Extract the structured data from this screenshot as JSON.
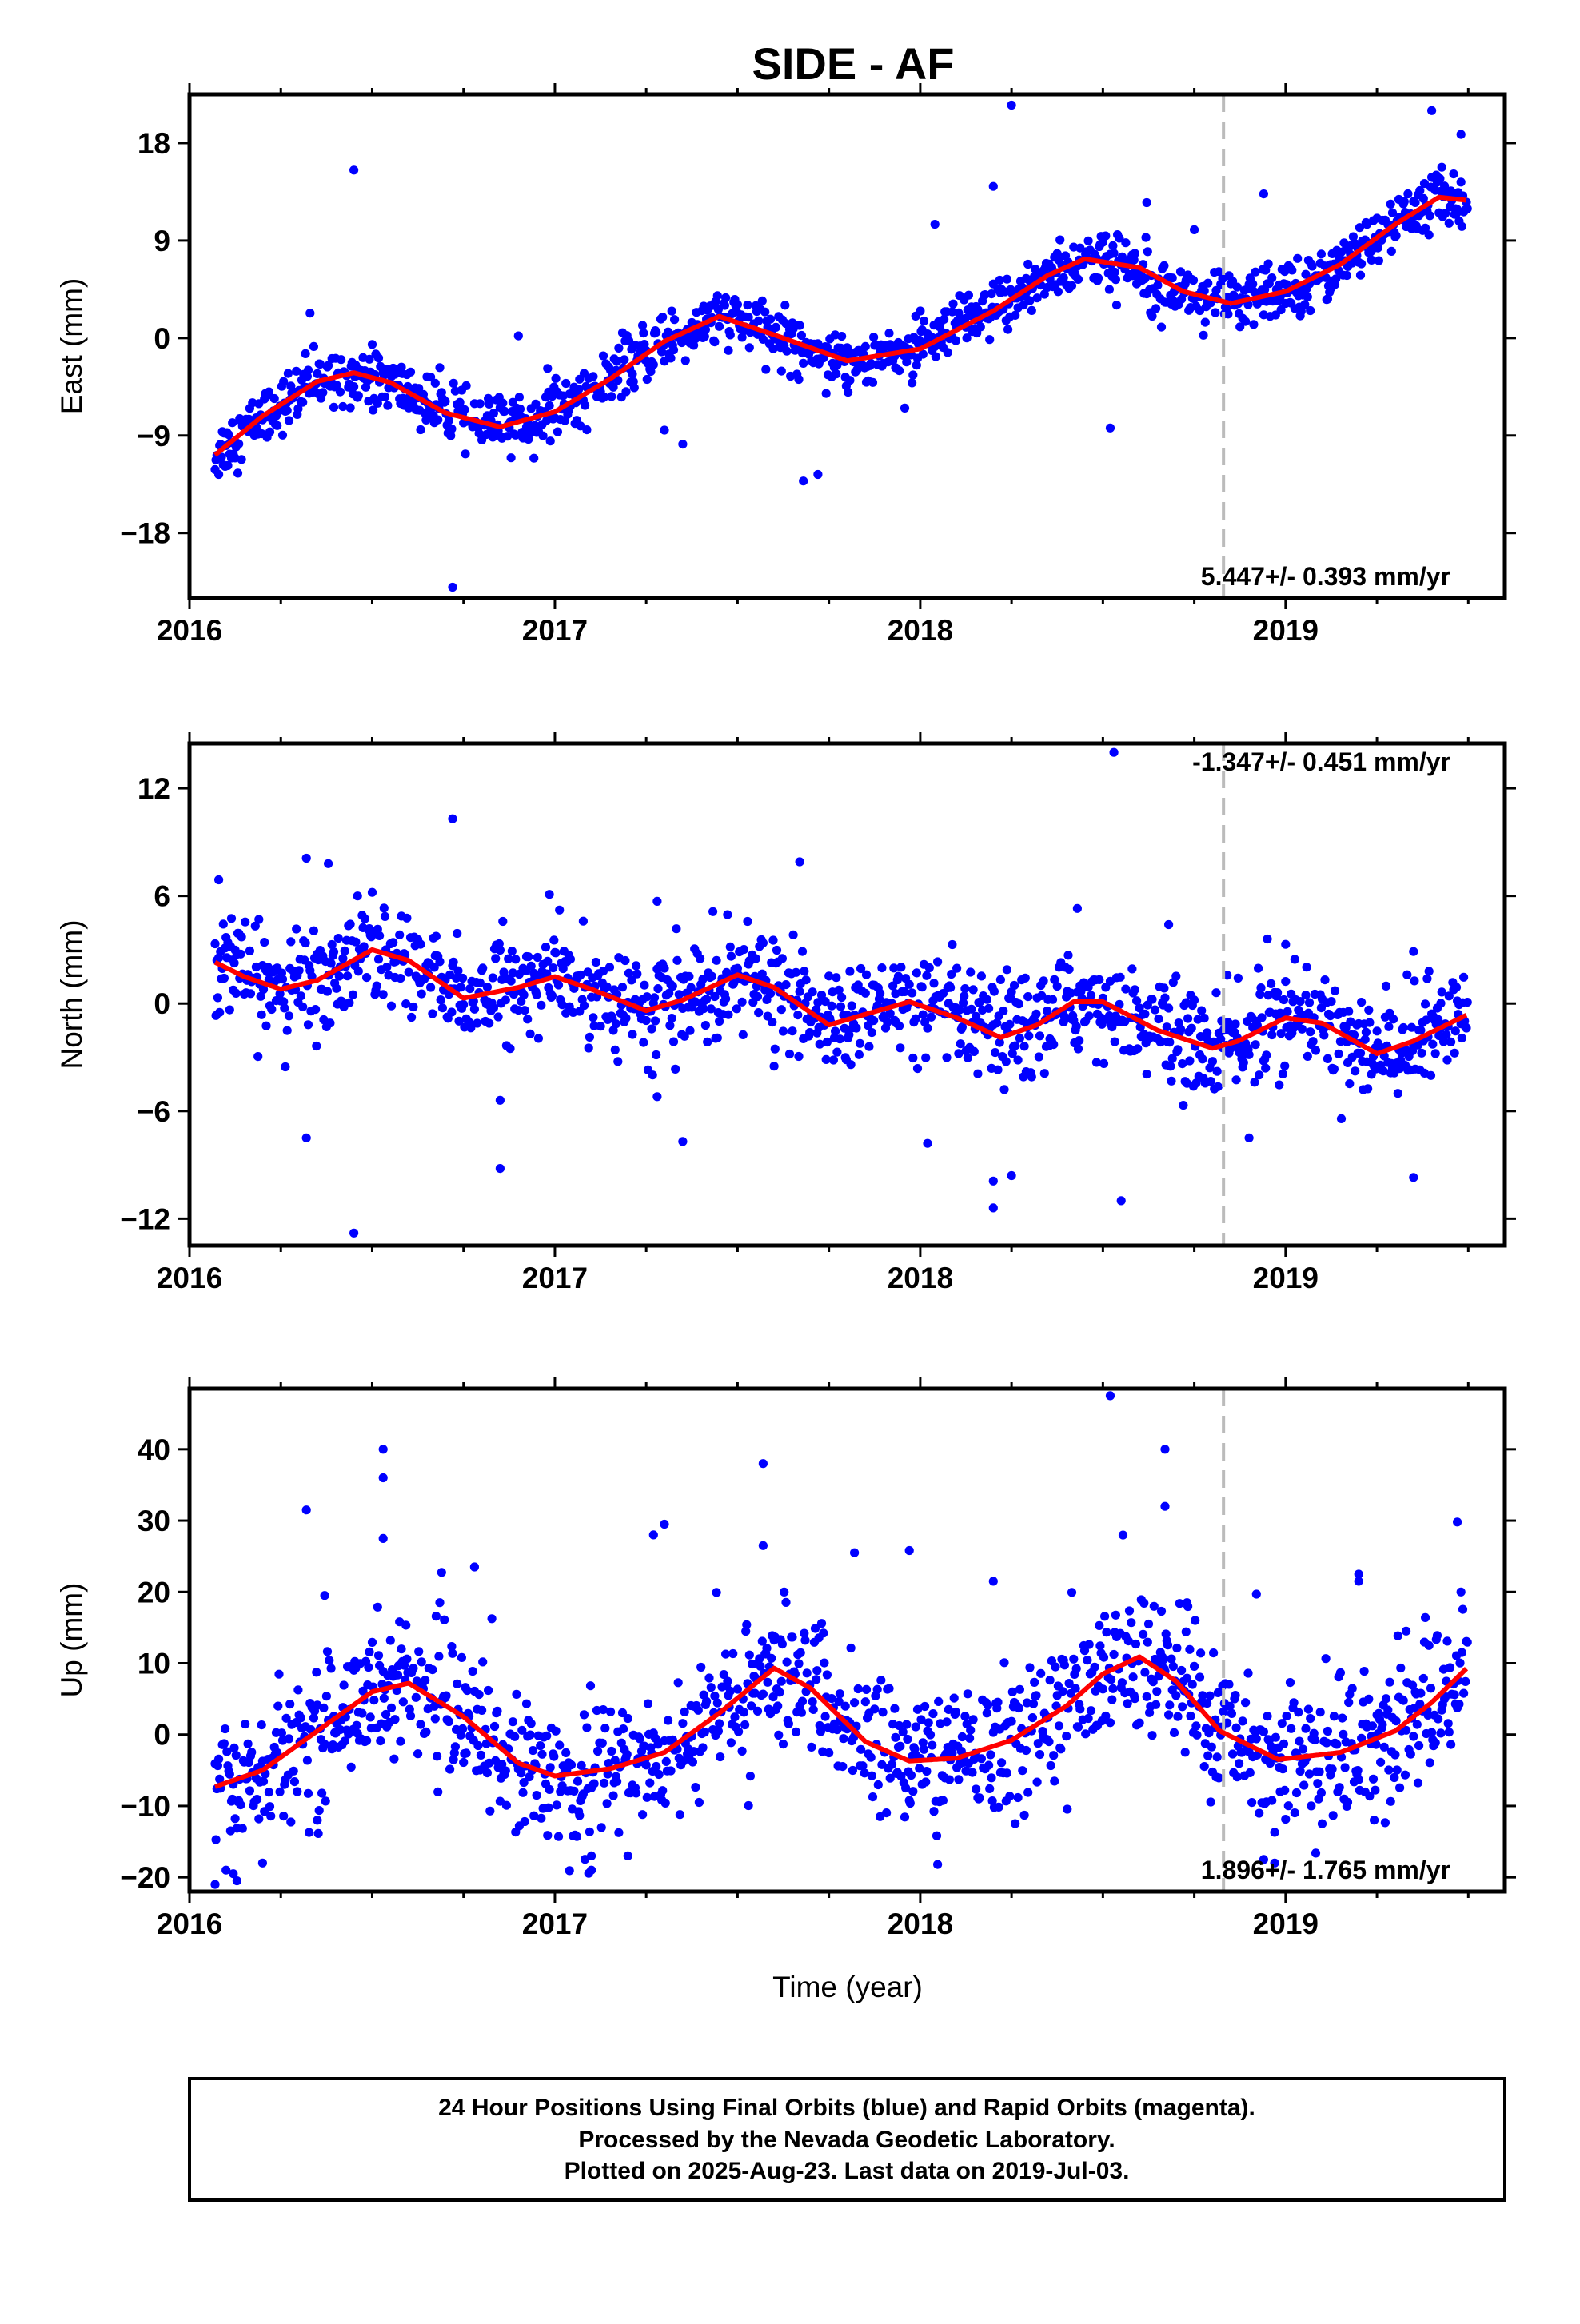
{
  "title": "SIDE - AF",
  "xlabel": "Time (year)",
  "footer": {
    "line1": "24 Hour Positions Using Final Orbits (blue) and Rapid Orbits (magenta).",
    "line2": "Processed by the Nevada Geodetic Laboratory.",
    "line3": "Plotted on 2025-Aug-23. Last data on 2019-Jul-03."
  },
  "colors": {
    "points": "#0000ff",
    "fit": "#ff0000",
    "marker_line": "#bbbbbb",
    "frame": "#000000"
  },
  "chart_data": [
    {
      "type": "scatter",
      "component": "East",
      "ylabel": "East (mm)",
      "rate": "5.447+/- 0.393 mm/yr",
      "xlim": [
        2016.0,
        2019.6
      ],
      "ylim": [
        -24,
        22.5
      ],
      "xticks": [
        2016,
        2017,
        2018,
        2019
      ],
      "yticks": [
        -18,
        -9,
        0,
        9,
        18
      ],
      "marker_x": 2018.83,
      "fit": [
        [
          2016.07,
          -10.8
        ],
        [
          2016.2,
          -7.2
        ],
        [
          2016.35,
          -4.0
        ],
        [
          2016.45,
          -3.2
        ],
        [
          2016.55,
          -4.1
        ],
        [
          2016.7,
          -6.9
        ],
        [
          2016.85,
          -8.2
        ],
        [
          2017.0,
          -6.8
        ],
        [
          2017.15,
          -3.8
        ],
        [
          2017.3,
          -0.3
        ],
        [
          2017.45,
          2.0
        ],
        [
          2017.6,
          0.3
        ],
        [
          2017.8,
          -2.1
        ],
        [
          2018.0,
          -1.0
        ],
        [
          2018.2,
          2.5
        ],
        [
          2018.35,
          5.8
        ],
        [
          2018.45,
          7.3
        ],
        [
          2018.6,
          6.5
        ],
        [
          2018.72,
          4.3
        ],
        [
          2018.85,
          3.2
        ],
        [
          2019.0,
          4.3
        ],
        [
          2019.15,
          6.8
        ],
        [
          2019.3,
          10.5
        ],
        [
          2019.42,
          13.0
        ],
        [
          2019.5,
          12.7
        ]
      ],
      "outliers": [
        [
          2016.45,
          15.5
        ],
        [
          2016.72,
          -23.0
        ],
        [
          2017.68,
          -13.2
        ],
        [
          2017.72,
          -12.6
        ],
        [
          2018.25,
          21.5
        ],
        [
          2018.52,
          -8.3
        ],
        [
          2018.62,
          12.5
        ],
        [
          2018.75,
          10.0
        ],
        [
          2018.94,
          13.3
        ],
        [
          2019.4,
          21.0
        ],
        [
          2019.48,
          18.8
        ],
        [
          2016.33,
          2.3
        ],
        [
          2016.9,
          0.2
        ],
        [
          2017.3,
          -8.5
        ],
        [
          2017.35,
          -9.8
        ],
        [
          2018.2,
          14.0
        ],
        [
          2018.04,
          10.5
        ]
      ]
    },
    {
      "type": "scatter",
      "component": "North",
      "ylabel": "North (mm)",
      "rate": "-1.347+/- 0.451 mm/yr",
      "xlim": [
        2016.0,
        2019.6
      ],
      "ylim": [
        -13.5,
        14.5
      ],
      "xticks": [
        2016,
        2017,
        2018,
        2019
      ],
      "yticks": [
        -12,
        -6,
        0,
        6,
        12
      ],
      "marker_x": 2018.83,
      "fit": [
        [
          2016.07,
          2.3
        ],
        [
          2016.15,
          1.5
        ],
        [
          2016.25,
          0.8
        ],
        [
          2016.35,
          1.3
        ],
        [
          2016.5,
          3.0
        ],
        [
          2016.6,
          2.4
        ],
        [
          2016.75,
          0.3
        ],
        [
          2016.9,
          0.9
        ],
        [
          2017.0,
          1.5
        ],
        [
          2017.1,
          0.8
        ],
        [
          2017.25,
          -0.4
        ],
        [
          2017.35,
          0.2
        ],
        [
          2017.5,
          1.6
        ],
        [
          2017.6,
          0.9
        ],
        [
          2017.75,
          -1.2
        ],
        [
          2017.85,
          -0.6
        ],
        [
          2017.97,
          0.1
        ],
        [
          2018.1,
          -0.8
        ],
        [
          2018.22,
          -1.9
        ],
        [
          2018.32,
          -1.2
        ],
        [
          2018.42,
          0.1
        ],
        [
          2018.5,
          0.1
        ],
        [
          2018.65,
          -1.5
        ],
        [
          2018.8,
          -2.5
        ],
        [
          2018.87,
          -2.1
        ],
        [
          2019.0,
          -0.8
        ],
        [
          2019.1,
          -1.1
        ],
        [
          2019.25,
          -2.8
        ],
        [
          2019.35,
          -2.1
        ],
        [
          2019.5,
          -0.6
        ]
      ],
      "outliers": [
        [
          2016.08,
          6.9
        ],
        [
          2016.72,
          10.3
        ],
        [
          2016.32,
          8.1
        ],
        [
          2016.38,
          7.8
        ],
        [
          2016.32,
          -7.5
        ],
        [
          2016.45,
          -12.8
        ],
        [
          2016.85,
          -9.2
        ],
        [
          2017.28,
          5.7
        ],
        [
          2017.35,
          -7.7
        ],
        [
          2017.67,
          7.9
        ],
        [
          2018.02,
          -7.8
        ],
        [
          2018.2,
          -11.4
        ],
        [
          2018.2,
          -9.9
        ],
        [
          2018.25,
          -9.6
        ],
        [
          2018.53,
          14.0
        ],
        [
          2018.55,
          -11.0
        ],
        [
          2018.68,
          4.4
        ],
        [
          2018.9,
          -7.5
        ],
        [
          2019.0,
          3.3
        ],
        [
          2019.35,
          -9.7
        ],
        [
          2016.85,
          -5.4
        ],
        [
          2017.28,
          -5.2
        ],
        [
          2016.5,
          6.2
        ],
        [
          2018.43,
          5.3
        ],
        [
          2018.95,
          3.6
        ],
        [
          2019.35,
          2.9
        ]
      ]
    },
    {
      "type": "scatter",
      "component": "Up",
      "ylabel": "Up (mm)",
      "rate": "1.896+/- 1.765 mm/yr",
      "xlim": [
        2016.0,
        2019.6
      ],
      "ylim": [
        -22,
        48.5
      ],
      "xticks": [
        2016,
        2017,
        2018,
        2019
      ],
      "yticks": [
        -20,
        -10,
        0,
        10,
        20,
        30,
        40
      ],
      "marker_x": 2018.83,
      "fit": [
        [
          2016.07,
          -7.3
        ],
        [
          2016.2,
          -5.0
        ],
        [
          2016.35,
          0.5
        ],
        [
          2016.5,
          6.0
        ],
        [
          2016.6,
          7.2
        ],
        [
          2016.75,
          2.5
        ],
        [
          2016.9,
          -4.0
        ],
        [
          2017.0,
          -5.8
        ],
        [
          2017.15,
          -4.8
        ],
        [
          2017.3,
          -2.5
        ],
        [
          2017.45,
          3.0
        ],
        [
          2017.6,
          9.3
        ],
        [
          2017.7,
          6.5
        ],
        [
          2017.85,
          -1.0
        ],
        [
          2017.97,
          -3.7
        ],
        [
          2018.1,
          -3.3
        ],
        [
          2018.25,
          -0.8
        ],
        [
          2018.4,
          4.0
        ],
        [
          2018.5,
          8.5
        ],
        [
          2018.6,
          10.9
        ],
        [
          2018.7,
          7.5
        ],
        [
          2018.82,
          0.5
        ],
        [
          2018.98,
          -3.5
        ],
        [
          2019.15,
          -2.5
        ],
        [
          2019.3,
          0.5
        ],
        [
          2019.4,
          4.5
        ],
        [
          2019.5,
          9.5
        ]
      ],
      "outliers": [
        [
          2016.53,
          40.0
        ],
        [
          2016.53,
          36.0
        ],
        [
          2016.53,
          27.5
        ],
        [
          2016.32,
          31.5
        ],
        [
          2016.37,
          19.5
        ],
        [
          2016.78,
          23.5
        ],
        [
          2017.27,
          28.0
        ],
        [
          2017.3,
          29.5
        ],
        [
          2017.57,
          38.0
        ],
        [
          2017.57,
          26.5
        ],
        [
          2017.82,
          25.5
        ],
        [
          2017.97,
          25.8
        ],
        [
          2018.2,
          21.5
        ],
        [
          2018.52,
          47.5
        ],
        [
          2018.67,
          40.0
        ],
        [
          2018.67,
          32.0
        ],
        [
          2018.73,
          18.5
        ],
        [
          2018.92,
          19.7
        ],
        [
          2019.2,
          22.5
        ],
        [
          2019.2,
          21.5
        ],
        [
          2019.33,
          14.5
        ],
        [
          2019.47,
          29.8
        ],
        [
          2019.48,
          20.0
        ],
        [
          2016.1,
          -19.0
        ],
        [
          2016.12,
          -19.5
        ],
        [
          2016.07,
          -21.0
        ],
        [
          2016.13,
          -20.5
        ],
        [
          2016.2,
          -18.0
        ],
        [
          2017.1,
          -19.0
        ],
        [
          2017.1,
          -17.0
        ],
        [
          2017.2,
          -17.0
        ],
        [
          2016.35,
          -12.0
        ],
        [
          2018.94,
          -17.5
        ],
        [
          2018.97,
          -18.0
        ],
        [
          2019.1,
          -12.5
        ]
      ]
    }
  ]
}
